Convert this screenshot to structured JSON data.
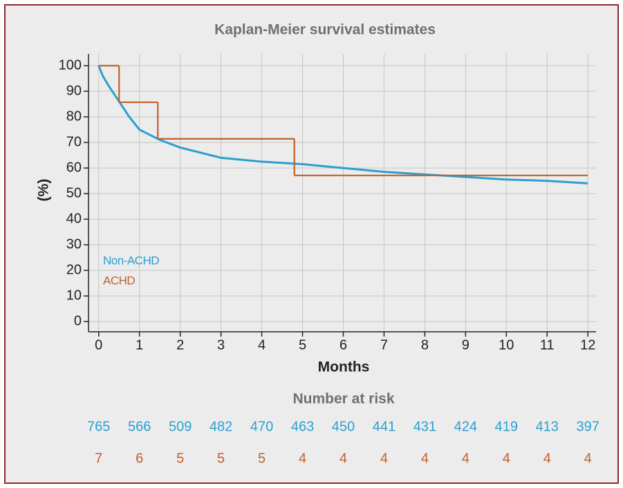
{
  "chart_data": {
    "type": "line",
    "title": "Kaplan-Meier survival estimates",
    "x_label": "Months",
    "y_label": "(%)",
    "xlim": [
      -0.25,
      12.2
    ],
    "ylim": [
      -4,
      104.6
    ],
    "xticks": [
      0,
      1,
      2,
      3,
      4,
      5,
      6,
      7,
      8,
      9,
      10,
      11,
      12
    ],
    "yticks": [
      0,
      10,
      20,
      30,
      40,
      50,
      60,
      70,
      80,
      90,
      100
    ],
    "grid": true,
    "legend": "lower-left",
    "series": [
      {
        "name": "Non-ACHD",
        "color": "#2b9fd0",
        "step": false,
        "x": [
          0,
          0.1,
          0.25,
          0.5,
          0.75,
          1,
          1.5,
          2,
          2.5,
          3,
          4,
          5,
          6,
          7,
          8,
          9,
          10,
          11,
          12
        ],
        "values": [
          100,
          96,
          92,
          86,
          80,
          75,
          71,
          68,
          66,
          64,
          62.5,
          61.5,
          60,
          58.5,
          57.5,
          56.5,
          55.5,
          55,
          54
        ]
      },
      {
        "name": "ACHD",
        "color": "#c0602a",
        "step": true,
        "x": [
          0,
          0.5,
          1.45,
          4.8,
          12
        ],
        "values": [
          100,
          85.7,
          71.4,
          57.1,
          57.1
        ]
      }
    ],
    "number_at_risk": {
      "title": "Number at risk",
      "rows": [
        {
          "values": [
            765,
            566,
            509,
            482,
            470,
            463,
            450,
            441,
            431,
            424,
            419,
            413,
            397
          ]
        },
        {
          "values": [
            7,
            6,
            5,
            5,
            5,
            4,
            4,
            4,
            4,
            4,
            4,
            4,
            4
          ]
        }
      ]
    }
  }
}
